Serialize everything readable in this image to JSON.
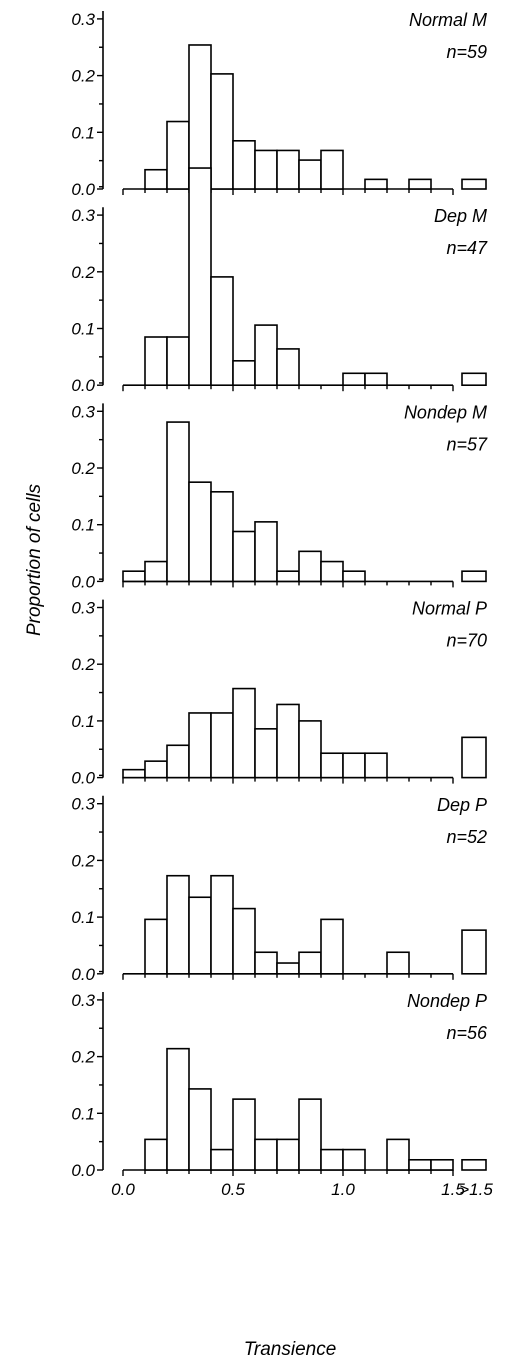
{
  "chart_data": {
    "type": "bar",
    "figure": {
      "ylabel": "Proportion of cells",
      "xlabel": "Transience"
    },
    "bin_edges": [
      0.0,
      0.1,
      0.2,
      0.3,
      0.4,
      0.5,
      0.6,
      0.7,
      0.8,
      0.9,
      1.0,
      1.1,
      1.2,
      1.3,
      1.4,
      1.5
    ],
    "overflow_category": ">1.5",
    "xticks": [
      {
        "value": 0.0,
        "label": "0.0"
      },
      {
        "value": 0.5,
        "label": "0.5"
      },
      {
        "value": 1.0,
        "label": "1.0"
      },
      {
        "value": 1.5,
        "label": "1.5"
      }
    ],
    "overflow_tick_label": ">1.5",
    "ylim": [
      0,
      0.38
    ],
    "yticks": [
      {
        "value": 0.0,
        "label": "0.0"
      },
      {
        "value": 0.1,
        "label": "0.1"
      },
      {
        "value": 0.2,
        "label": "0.2"
      },
      {
        "value": 0.3,
        "label": "0.3"
      }
    ],
    "grid": false,
    "panels": [
      {
        "name": "Normal M",
        "n_label": "n=59",
        "values": [
          0.0,
          0.034,
          0.119,
          0.254,
          0.203,
          0.085,
          0.068,
          0.068,
          0.051,
          0.068,
          0.0,
          0.017,
          0.0,
          0.017,
          0.0
        ],
        "overflow": 0.017
      },
      {
        "name": "Dep M",
        "n_label": "n=47",
        "values": [
          0.0,
          0.085,
          0.085,
          0.383,
          0.191,
          0.043,
          0.106,
          0.064,
          0.0,
          0.0,
          0.021,
          0.021,
          0.0,
          0.0,
          0.0
        ],
        "overflow": 0.021
      },
      {
        "name": "Nondep M",
        "n_label": "n=57",
        "values": [
          0.018,
          0.035,
          0.281,
          0.175,
          0.158,
          0.088,
          0.105,
          0.018,
          0.053,
          0.035,
          0.018,
          0.0,
          0.0,
          0.0,
          0.0
        ],
        "overflow": 0.018
      },
      {
        "name": "Normal P",
        "n_label": "n=70",
        "values": [
          0.014,
          0.029,
          0.057,
          0.114,
          0.114,
          0.157,
          0.086,
          0.129,
          0.1,
          0.043,
          0.043,
          0.043,
          0.0,
          0.0,
          0.0
        ],
        "overflow": 0.071
      },
      {
        "name": "Dep P",
        "n_label": "n=52",
        "values": [
          0.0,
          0.096,
          0.173,
          0.135,
          0.173,
          0.115,
          0.038,
          0.019,
          0.038,
          0.096,
          0.0,
          0.0,
          0.038,
          0.0,
          0.0
        ],
        "overflow": 0.077
      },
      {
        "name": "Nondep P",
        "n_label": "n=56",
        "values": [
          0.0,
          0.054,
          0.214,
          0.143,
          0.036,
          0.125,
          0.054,
          0.054,
          0.125,
          0.036,
          0.036,
          0.0,
          0.054,
          0.018,
          0.018
        ],
        "overflow": 0.018
      }
    ]
  }
}
